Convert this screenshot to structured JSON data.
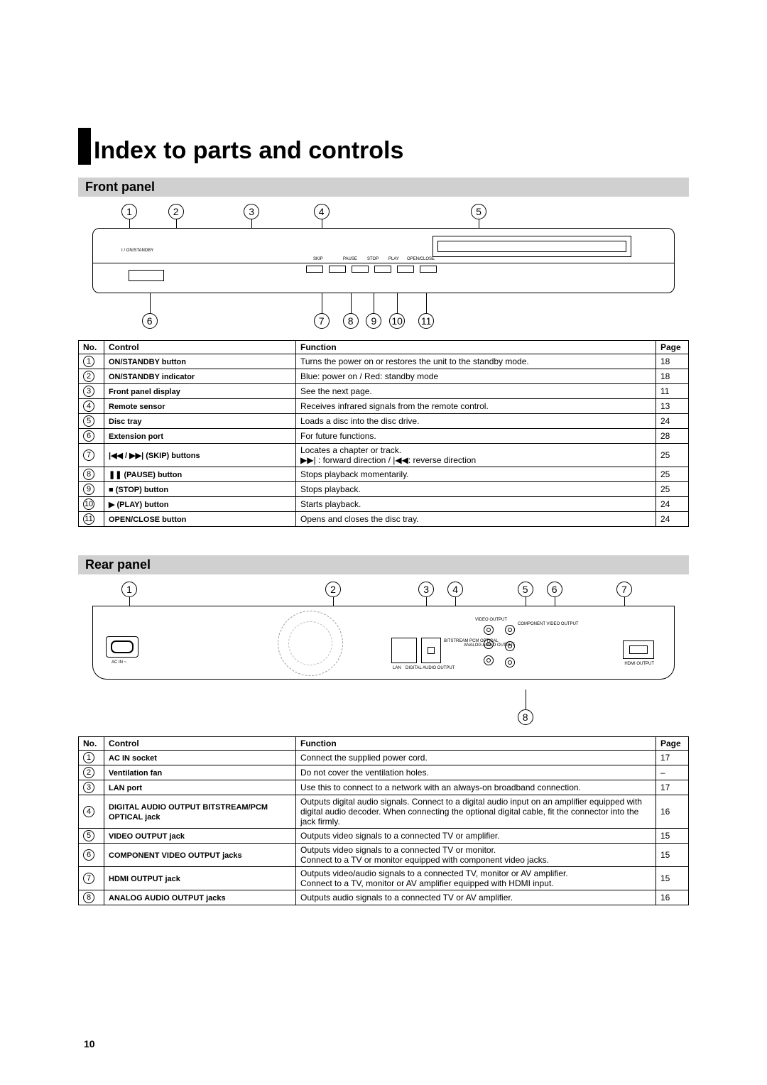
{
  "title": "Index to parts and controls",
  "page_number": "10",
  "front": {
    "header": "Front panel",
    "callouts_top": [
      {
        "n": "1",
        "left_pct": 5
      },
      {
        "n": "2",
        "left_pct": 13
      },
      {
        "n": "3",
        "left_pct": 26
      },
      {
        "n": "4",
        "left_pct": 38
      },
      {
        "n": "5",
        "left_pct": 65
      }
    ],
    "callouts_bottom": [
      {
        "n": "6",
        "left_pct": 8.5
      },
      {
        "n": "7",
        "left_pct": 38
      },
      {
        "n": "8",
        "left_pct": 43
      },
      {
        "n": "9",
        "left_pct": 47
      },
      {
        "n": "10",
        "left_pct": 51
      },
      {
        "n": "11",
        "left_pct": 56
      }
    ],
    "table_headers": {
      "no": "No.",
      "control": "Control",
      "function": "Function",
      "page": "Page"
    },
    "rows": [
      {
        "no": "1",
        "control": "ON/STANDBY button",
        "function": "Turns the power on or restores the unit to the standby mode.",
        "page": "18"
      },
      {
        "no": "2",
        "control": "ON/STANDBY indicator",
        "function": "Blue: power on / Red: standby mode",
        "page": "18"
      },
      {
        "no": "3",
        "control": "Front panel display",
        "function": "See the next page.",
        "page": "11"
      },
      {
        "no": "4",
        "control": "Remote sensor",
        "function": "Receives infrared signals from the remote control.",
        "page": "13"
      },
      {
        "no": "5",
        "control": "Disc tray",
        "function": "Loads a disc into the disc drive.",
        "page": "24"
      },
      {
        "no": "6",
        "control": "Extension port",
        "function": "For future functions.",
        "page": "28"
      },
      {
        "no": "7",
        "control": "|◀◀ / ▶▶| (SKIP) buttons",
        "function": "Locates a chapter or track.\n▶▶| : forward direction / |◀◀: reverse direction",
        "page": "25"
      },
      {
        "no": "8",
        "control": "❚❚ (PAUSE) button",
        "function": "Stops playback momentarily.",
        "page": "25"
      },
      {
        "no": "9",
        "control": "■ (STOP) button",
        "function": "Stops playback.",
        "page": "25"
      },
      {
        "no": "10",
        "control": "▶ (PLAY) button",
        "function": "Starts playback.",
        "page": "24"
      },
      {
        "no": "11",
        "control": "OPEN/CLOSE button",
        "function": "Opens and closes the disc tray.",
        "page": "24"
      }
    ],
    "micro_labels": {
      "standby": "I / ON/STANDBY",
      "skip": "SKIP",
      "pause": "PAUSE",
      "stop": "STOP",
      "play": "PLAY",
      "open": "OPEN/CLOSE"
    }
  },
  "rear": {
    "header": "Rear panel",
    "callouts_top": [
      {
        "n": "1",
        "left_pct": 5
      },
      {
        "n": "2",
        "left_pct": 40
      },
      {
        "n": "3",
        "left_pct": 56
      },
      {
        "n": "4",
        "left_pct": 61
      },
      {
        "n": "5",
        "left_pct": 73
      },
      {
        "n": "6",
        "left_pct": 78
      },
      {
        "n": "7",
        "left_pct": 90
      }
    ],
    "callouts_bottom": [
      {
        "n": "8",
        "left_pct": 73
      }
    ],
    "table_headers": {
      "no": "No.",
      "control": "Control",
      "function": "Function",
      "page": "Page"
    },
    "rows": [
      {
        "no": "1",
        "control": "AC IN socket",
        "function": "Connect the supplied power cord.",
        "page": "17"
      },
      {
        "no": "2",
        "control": "Ventilation fan",
        "function": "Do not cover the ventilation holes.",
        "page": "–"
      },
      {
        "no": "3",
        "control": "LAN port",
        "function": "Use this to connect to a network with an always-on broadband connection.",
        "page": "17"
      },
      {
        "no": "4",
        "control": "DIGITAL AUDIO OUTPUT BITSTREAM/PCM OPTICAL jack",
        "function": "Outputs digital audio signals. Connect to a digital audio input on an amplifier equipped with digital audio decoder. When connecting the optional digital cable, fit the connector into the jack firmly.",
        "page": "16"
      },
      {
        "no": "5",
        "control": "VIDEO OUTPUT jack",
        "function": "Outputs video signals to a connected TV or amplifier.",
        "page": "15"
      },
      {
        "no": "6",
        "control": "COMPONENT VIDEO OUTPUT jacks",
        "function": "Outputs video signals to a connected TV or monitor.\nConnect to a TV or monitor equipped with component video jacks.",
        "page": "15"
      },
      {
        "no": "7",
        "control": "HDMI OUTPUT jack",
        "function": "Outputs video/audio signals to a connected TV, monitor or AV amplifier.\nConnect to a TV, monitor or AV amplifier equipped with HDMI input.",
        "page": "15"
      },
      {
        "no": "8",
        "control": "ANALOG AUDIO OUTPUT jacks",
        "function": "Outputs audio signals to a connected TV or AV amplifier.",
        "page": "16"
      }
    ],
    "micro_labels": {
      "acin": "AC IN ~",
      "video": "VIDEO OUTPUT",
      "comp": "COMPONENT\nVIDEO OUTPUT",
      "analog": "ANALOG AUDIO\nOUTPUT",
      "bitstream": "BITSTREAM\nPCM\nOPTICAL",
      "lan": "LAN",
      "digital": "DIGITAL AUDIO OUTPUT",
      "hdmi": "HDMI OUTPUT"
    }
  }
}
